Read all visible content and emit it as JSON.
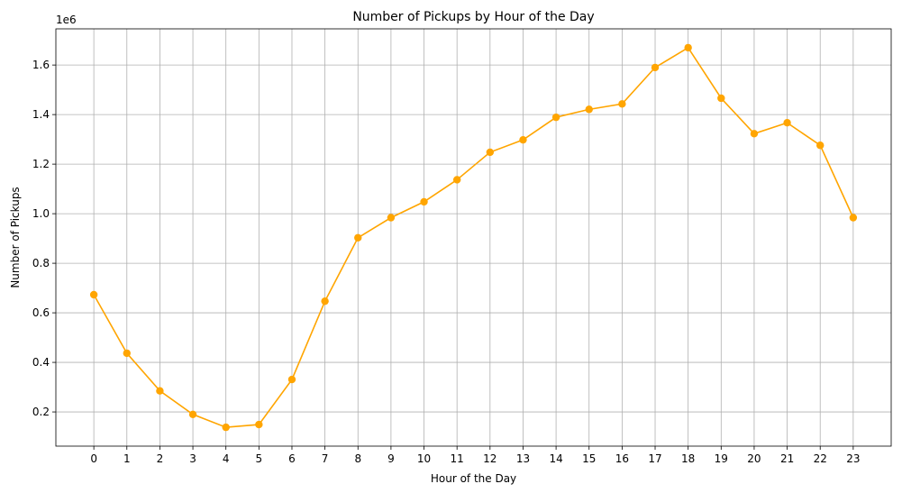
{
  "chart_data": {
    "type": "line",
    "title": "Number of Pickups by Hour of the Day",
    "xlabel": "Hour of the Day",
    "ylabel": "Number of Pickups",
    "y_offset_label": "1e6",
    "x": [
      0,
      1,
      2,
      3,
      4,
      5,
      6,
      7,
      8,
      9,
      10,
      11,
      12,
      13,
      14,
      15,
      16,
      17,
      18,
      19,
      20,
      21,
      22,
      23
    ],
    "x_tick_labels": [
      "0",
      "1",
      "2",
      "3",
      "4",
      "5",
      "6",
      "7",
      "8",
      "9",
      "10",
      "11",
      "12",
      "13",
      "14",
      "15",
      "16",
      "17",
      "18",
      "19",
      "20",
      "21",
      "22",
      "23"
    ],
    "series": [
      {
        "values": [
          673000,
          437000,
          285000,
          190000,
          138000,
          149000,
          331000,
          647000,
          903000,
          984000,
          1048000,
          1137000,
          1248000,
          1298000,
          1389000,
          1421000,
          1443000,
          1590000,
          1670000,
          1466000,
          1323000,
          1367000,
          1276000,
          984000
        ],
        "color": "#ffa500"
      }
    ],
    "xlim": [
      -1.15,
      24.15
    ],
    "ylim": [
      62000,
      1746000
    ],
    "y_ticks": [
      200000,
      400000,
      600000,
      800000,
      1000000,
      1200000,
      1400000,
      1600000
    ],
    "y_tick_labels": [
      "0.2",
      "0.4",
      "0.6",
      "0.8",
      "1.0",
      "1.2",
      "1.4",
      "1.6"
    ],
    "grid": true,
    "legend": false,
    "marker": "circle"
  }
}
